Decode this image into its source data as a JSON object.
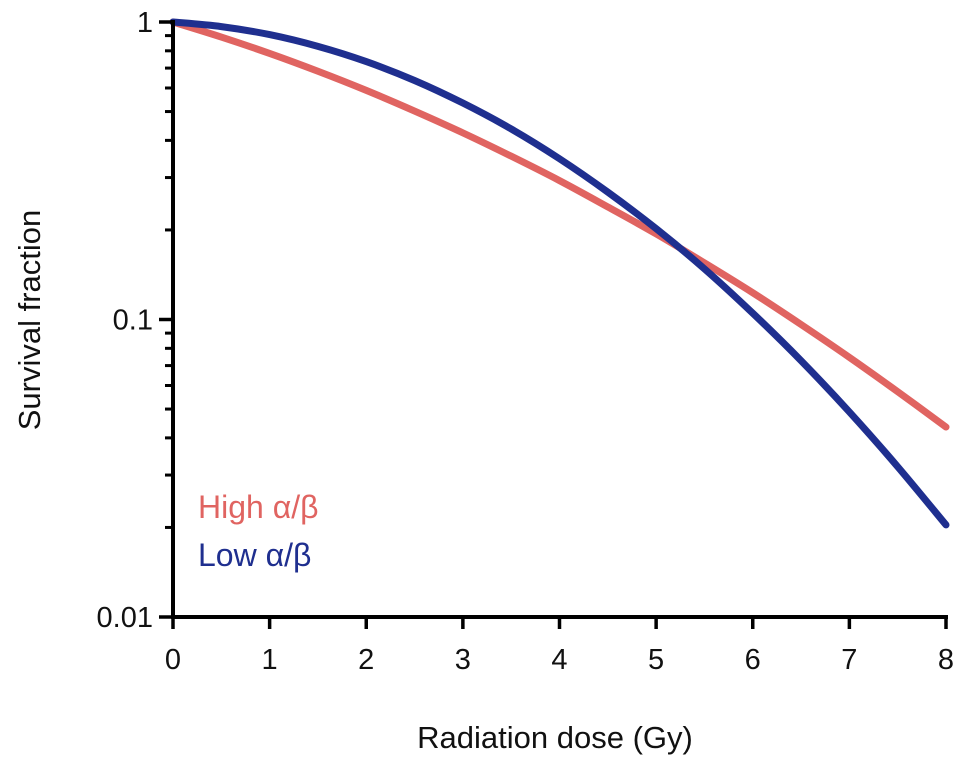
{
  "chart_data": {
    "type": "line",
    "title": "",
    "xlabel": "Radiation dose (Gy)",
    "ylabel": "Survival fraction",
    "xlim": [
      0,
      8
    ],
    "ylim": [
      0.01,
      1
    ],
    "yscale": "log",
    "grid": false,
    "legend_placement": "bottom-left",
    "x_ticks": [
      "0",
      "1",
      "2",
      "3",
      "4",
      "5",
      "6",
      "7",
      "8"
    ],
    "y_ticks": [
      {
        "value": 1,
        "label": "1"
      },
      {
        "value": 0.1,
        "label": "0.1"
      },
      {
        "value": 0.01,
        "label": "0.01"
      }
    ],
    "x": [
      0,
      0.5,
      1,
      1.5,
      2,
      2.5,
      3,
      3.5,
      4,
      4.5,
      5,
      5.5,
      6,
      6.5,
      7,
      7.5,
      8
    ],
    "series": [
      {
        "name": "High α/β",
        "color": "#e06461",
        "values": [
          1,
          0.89,
          0.784,
          0.683,
          0.589,
          0.502,
          0.424,
          0.354,
          0.293,
          0.239,
          0.194,
          0.155,
          0.123,
          0.0962,
          0.0746,
          0.0572,
          0.0435
        ]
      },
      {
        "name": "Low α/β",
        "color": "#1f2f8f",
        "values": [
          1,
          0.965,
          0.907,
          0.828,
          0.736,
          0.636,
          0.534,
          0.437,
          0.347,
          0.268,
          0.202,
          0.148,
          0.105,
          0.0727,
          0.0489,
          0.032,
          0.0204
        ]
      }
    ]
  }
}
